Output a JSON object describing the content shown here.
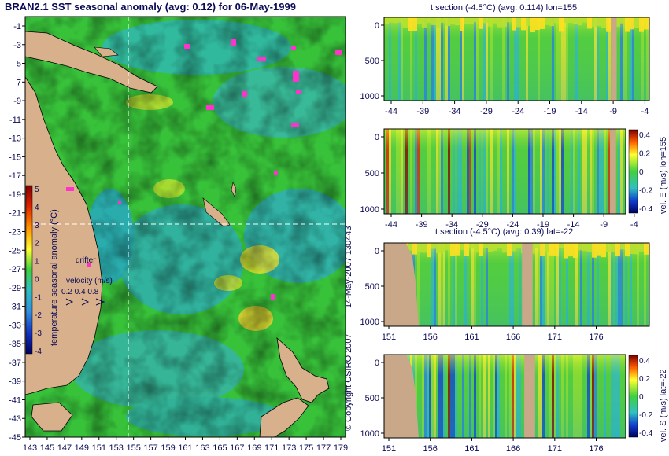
{
  "chart_data": [
    {
      "type": "heatmap",
      "title": "BRAN2.1 SST seasonal anomaly (avg: 0.12) for 06-May-1999",
      "x_ticks": [
        "143",
        "145",
        "147",
        "149",
        "151",
        "153",
        "155",
        "157",
        "159",
        "161",
        "163",
        "165",
        "167",
        "169",
        "171",
        "173",
        "175",
        "177",
        "179"
      ],
      "y_ticks": [
        "-1",
        "-3",
        "-5",
        "-7",
        "-9",
        "-11",
        "-13",
        "-15",
        "-17",
        "-19",
        "-21",
        "-23",
        "-25",
        "-27",
        "-29",
        "-31",
        "-33",
        "-35",
        "-37",
        "-39",
        "-41",
        "-43",
        "-45"
      ],
      "colorbar": {
        "label": "temperature seasonal anomaly (°C)",
        "ticks": [
          "5",
          "4",
          "3",
          "2",
          "1",
          "0",
          "-1",
          "-2",
          "-3",
          "-4"
        ]
      },
      "annotations": {
        "drifter": "drifter",
        "velocity_title": "velocity (m/s)",
        "velocity_values": "0.2 0.4 0.8"
      },
      "section_lines": {
        "lon": 155,
        "lat": -22
      }
    },
    {
      "type": "heatmap",
      "title": "t section (-4.5°C) (avg: 0.114) lon=155",
      "x_ticks": [
        "-44",
        "-39",
        "-34",
        "-29",
        "-24",
        "-19",
        "-14",
        "-9",
        "-4"
      ],
      "y_ticks": [
        "0",
        "500",
        "1000"
      ]
    },
    {
      "type": "heatmap",
      "x_ticks": [
        "-44",
        "-39",
        "-34",
        "-29",
        "-24",
        "-19",
        "-14",
        "-9",
        "-4"
      ],
      "y_ticks": [
        "0",
        "500",
        "1000"
      ],
      "colorbar": {
        "label": "vel. E (m/s) lon=155",
        "ticks": [
          "0.4",
          "0.2",
          "0",
          "-0.2",
          "-0.4"
        ]
      }
    },
    {
      "type": "heatmap",
      "title": "t section (-4.5°C) (avg: 0.39) lat=-22",
      "x_ticks": [
        "151",
        "156",
        "161",
        "166",
        "171",
        "176"
      ],
      "y_ticks": [
        "0",
        "500",
        "1000"
      ]
    },
    {
      "type": "heatmap",
      "x_ticks": [
        "151",
        "156",
        "161",
        "166",
        "171",
        "176"
      ],
      "y_ticks": [
        "0",
        "500",
        "1000"
      ],
      "colorbar": {
        "label": "vel. S (m/s) lat=-22",
        "ticks": [
          "0.4",
          "0.2",
          "0",
          "-0.2",
          "-0.4"
        ]
      }
    }
  ],
  "side_text": {
    "date": "14-May-2007 130443",
    "copyright": "© Copyright CSIRO 2007"
  },
  "colors": {
    "land": "#d8b08c",
    "text": "#0a0a55",
    "drifter": "#ff33cc",
    "sea_green": "#30c030",
    "sea_cyan": "#30b0b0",
    "warm": "#ffe020",
    "cold": "#2060d0"
  }
}
